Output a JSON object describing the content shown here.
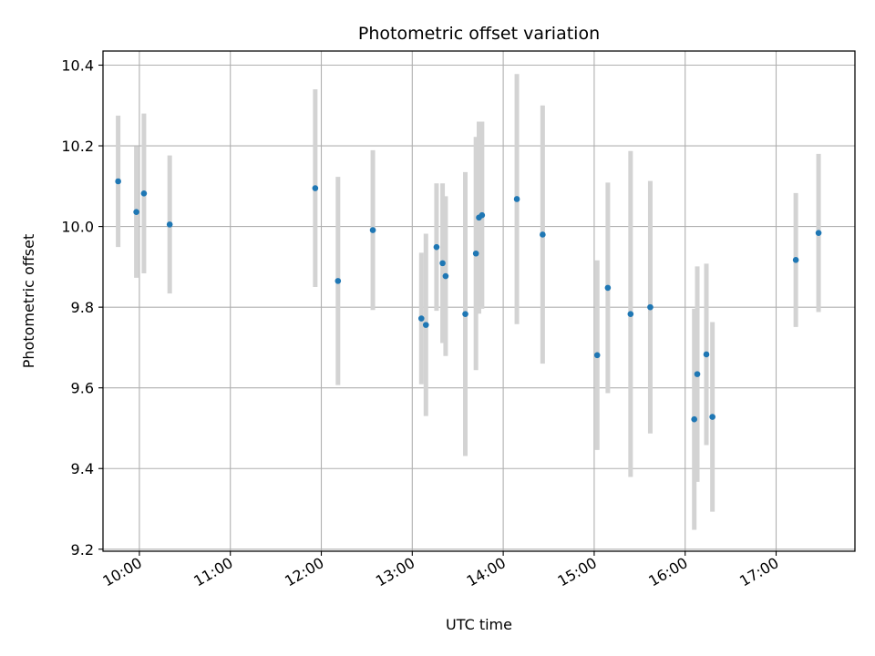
{
  "chart_data": {
    "type": "scatter",
    "title": "Photometric offset variation",
    "xlabel": "UTC time",
    "ylabel": "Photometric offset",
    "grid": true,
    "xlim": [
      "09:36",
      "17:52"
    ],
    "ylim": [
      9.195,
      10.435
    ],
    "xticks": [
      "10:00",
      "11:00",
      "12:00",
      "13:00",
      "14:00",
      "15:00",
      "16:00",
      "17:00"
    ],
    "yticks": [
      9.2,
      9.4,
      9.6,
      9.8,
      10.0,
      10.2,
      10.4
    ],
    "ytick_labels": [
      "9.2",
      "9.4",
      "9.6",
      "9.8",
      "10.0",
      "10.2",
      "10.4"
    ],
    "marker_color": "#1f77b4",
    "errorbar_color": "#d3d3d3",
    "points": [
      {
        "x": "09:46",
        "y": 10.112,
        "yerr": 0.163
      },
      {
        "x": "09:58",
        "y": 10.036,
        "yerr": 0.163
      },
      {
        "x": "10:03",
        "y": 10.082,
        "yerr": 0.198
      },
      {
        "x": "10:20",
        "y": 10.005,
        "yerr": 0.171
      },
      {
        "x": "11:56",
        "y": 10.095,
        "yerr": 0.245
      },
      {
        "x": "12:11",
        "y": 9.865,
        "yerr": 0.258
      },
      {
        "x": "12:34",
        "y": 9.991,
        "yerr": 0.198
      },
      {
        "x": "13:06",
        "y": 9.772,
        "yerr": 0.163
      },
      {
        "x": "13:09",
        "y": 9.756,
        "yerr": 0.226
      },
      {
        "x": "13:16",
        "y": 9.949,
        "yerr": 0.158
      },
      {
        "x": "13:20",
        "y": 9.909,
        "yerr": 0.198
      },
      {
        "x": "13:22",
        "y": 9.877,
        "yerr": 0.198
      },
      {
        "x": "13:35",
        "y": 9.783,
        "yerr": 0.352
      },
      {
        "x": "13:42",
        "y": 9.933,
        "yerr": 0.289
      },
      {
        "x": "13:44",
        "y": 10.022,
        "yerr": 0.238
      },
      {
        "x": "13:46",
        "y": 10.028,
        "yerr": 0.232
      },
      {
        "x": "14:09",
        "y": 10.068,
        "yerr": 0.31
      },
      {
        "x": "14:26",
        "y": 9.98,
        "yerr": 0.32
      },
      {
        "x": "15:02",
        "y": 9.681,
        "yerr": 0.235
      },
      {
        "x": "15:09",
        "y": 9.848,
        "yerr": 0.261
      },
      {
        "x": "15:24",
        "y": 9.783,
        "yerr": 0.404
      },
      {
        "x": "15:37",
        "y": 9.8,
        "yerr": 0.313
      },
      {
        "x": "16:06",
        "y": 9.522,
        "yerr": 0.274
      },
      {
        "x": "16:08",
        "y": 9.634,
        "yerr": 0.267
      },
      {
        "x": "16:14",
        "y": 9.683,
        "yerr": 0.225
      },
      {
        "x": "16:18",
        "y": 9.528,
        "yerr": 0.235
      },
      {
        "x": "17:13",
        "y": 9.917,
        "yerr": 0.166
      },
      {
        "x": "17:28",
        "y": 9.984,
        "yerr": 0.196
      }
    ]
  }
}
